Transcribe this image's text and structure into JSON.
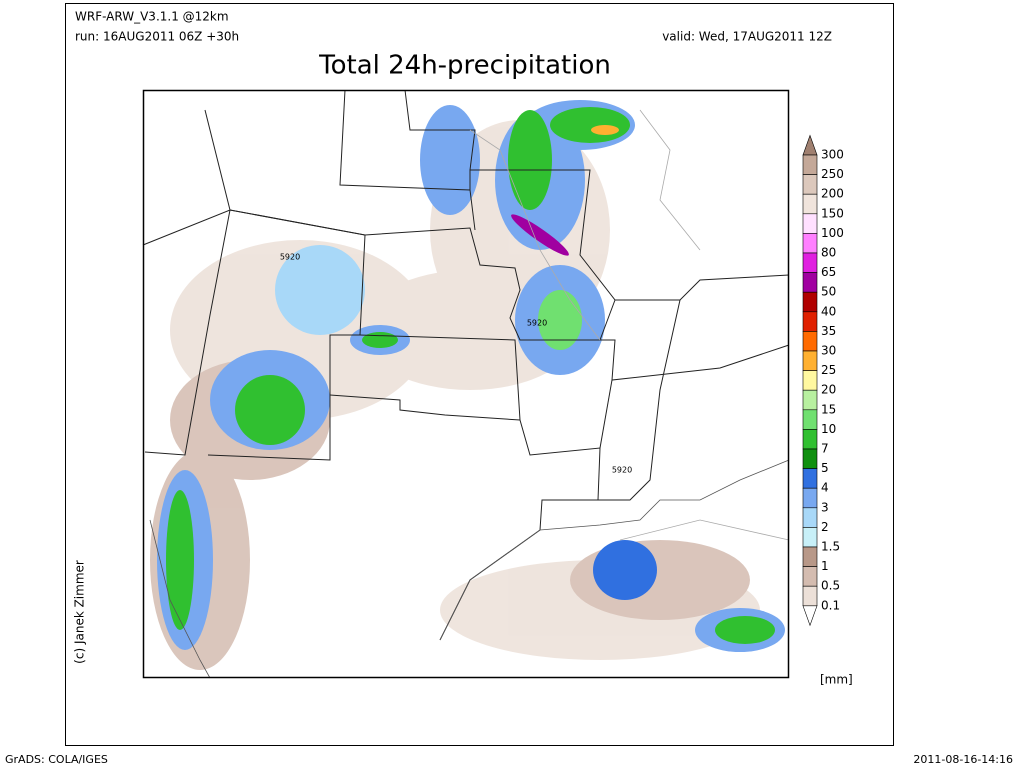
{
  "header": {
    "model": "WRF-ARW_V3.1.1 @12km",
    "run": "run: 16AUG2011 06Z +30h",
    "valid": "valid: Wed, 17AUG2011 12Z",
    "title": "Total 24h-precipitation"
  },
  "map": {
    "contour_labels": [
      "5920",
      "5920",
      "5920"
    ],
    "credit": "(c) Janek Zimmer"
  },
  "colorbar": {
    "labels": [
      "300",
      "250",
      "200",
      "150",
      "100",
      "80",
      "65",
      "50",
      "40",
      "35",
      "30",
      "25",
      "20",
      "15",
      "10",
      "7",
      "5",
      "4",
      "3",
      "2",
      "1.5",
      "1",
      "0.5",
      "0.1"
    ],
    "colors": [
      "#a08070",
      "#c4a898",
      "#dcc8bc",
      "#f0e4dc",
      "#ffe0ff",
      "#ff80ff",
      "#e020e0",
      "#a000a0",
      "#b00000",
      "#e02000",
      "#ff6a00",
      "#ffb030",
      "#fff8a0",
      "#b8f0a0",
      "#70e070",
      "#30c030",
      "#109010",
      "#3070e0",
      "#78a8f0",
      "#a8d8f8",
      "#c8f0f8",
      "#b89888",
      "#d4bcb0",
      "#ece0d8",
      "#ffffff"
    ],
    "unit": "[mm]"
  },
  "footer": {
    "left": "GrADS: COLA/IGES",
    "right": "2011-08-16-14:16"
  }
}
